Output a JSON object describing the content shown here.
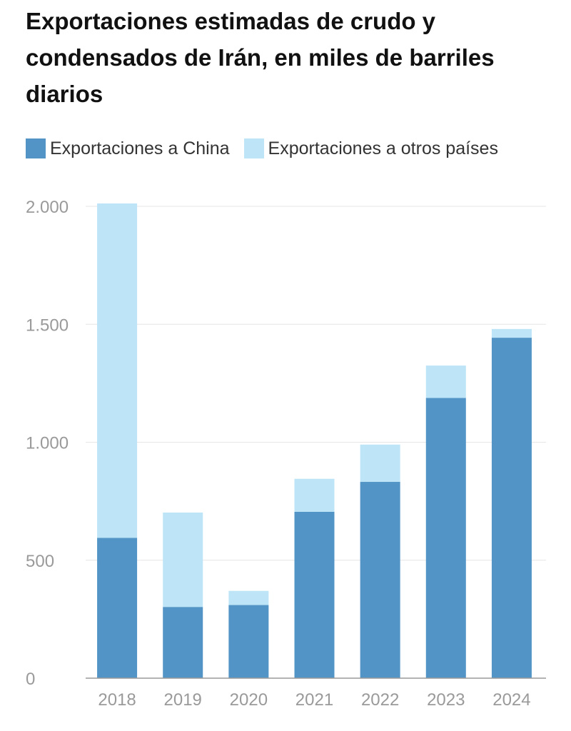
{
  "chart_data": {
    "type": "bar",
    "stacked": true,
    "title": "Exportaciones estimadas de crudo y condensados de Irán, en miles de barriles diarios",
    "categories": [
      "2018",
      "2019",
      "2020",
      "2021",
      "2022",
      "2023",
      "2024"
    ],
    "series": [
      {
        "name": "Exportaciones a China",
        "color": "#5294c5",
        "values": [
          595,
          302,
          310,
          705,
          832,
          1188,
          1443
        ]
      },
      {
        "name": "Exportaciones a otros países",
        "color": "#bde4f7",
        "values": [
          1417,
          400,
          60,
          140,
          158,
          137,
          37
        ]
      }
    ],
    "ylim": [
      0,
      2000
    ],
    "yticks": [
      0,
      500,
      1000,
      1500,
      2000
    ],
    "ytick_labels": [
      "0",
      "500",
      "1.000",
      "1.500",
      "2.000"
    ],
    "grid": true,
    "legend_position": "top-left"
  }
}
